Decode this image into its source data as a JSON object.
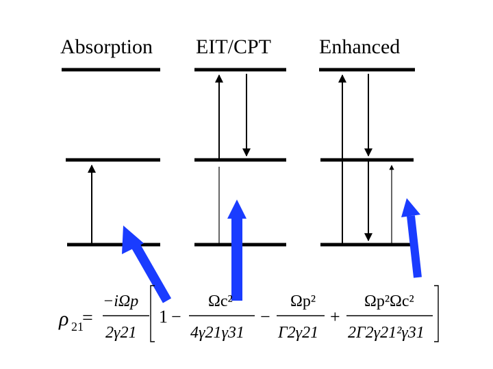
{
  "panels": [
    {
      "title": "Absorption"
    },
    {
      "title": "EIT/CPT"
    },
    {
      "title": "Enhanced"
    }
  ],
  "colors": {
    "level_line": "#000000",
    "transition_arrow": "#000000",
    "photon_arrow": "#1a3cff"
  },
  "equation": {
    "lhs_symbol": "ρ",
    "lhs_subscript": "21",
    "equals": "=",
    "prefactor_numerator": "−iΩp",
    "prefactor_denominator": "2γ21",
    "one": "1",
    "minus_1": "−",
    "term2_numerator": "Ωc²",
    "term2_denominator": "4γ21γ31",
    "minus_2": "−",
    "term3_numerator": "Ωp²",
    "term3_denominator": "Γ2γ21",
    "plus": "+",
    "term4_numerator": "Ωp²Ωc²",
    "term4_denominator": "2Γ2γ21²γ31"
  }
}
